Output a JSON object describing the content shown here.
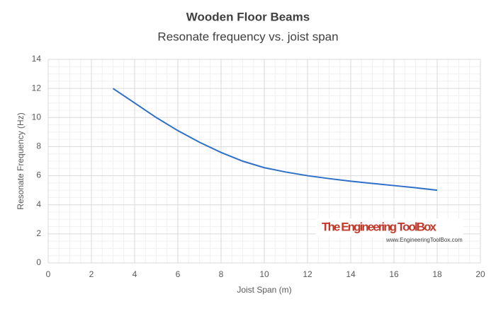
{
  "chart_data": {
    "type": "line",
    "title": "Wooden Floor Beams",
    "subtitle": "Resonate frequency vs. joist span",
    "x_label": "Joist Span (m)",
    "y_label": "Resonate Frequency (Hz)",
    "x": [
      3,
      4,
      5,
      6,
      7,
      8,
      9,
      10,
      11,
      12,
      13,
      14,
      15,
      16,
      17,
      18
    ],
    "series": [
      {
        "name": "Resonate frequency",
        "color": "#2e6fc7",
        "values": [
          12,
          11,
          10,
          9.1,
          8.3,
          7.6,
          7.0,
          6.55,
          6.25,
          6.0,
          5.8,
          5.62,
          5.47,
          5.32,
          5.17,
          5.0
        ]
      }
    ],
    "xlim": [
      0,
      20
    ],
    "xticks": [
      0,
      2,
      4,
      6,
      8,
      10,
      12,
      14,
      16,
      18,
      20
    ],
    "ylim": [
      0,
      14
    ],
    "yticks": [
      0,
      2,
      4,
      6,
      8,
      10,
      12,
      14
    ],
    "grid": true,
    "minor_grid": true,
    "watermark": {
      "name": "The Engineering ToolBox",
      "url": "www.EngineeringToolBox.com"
    }
  }
}
